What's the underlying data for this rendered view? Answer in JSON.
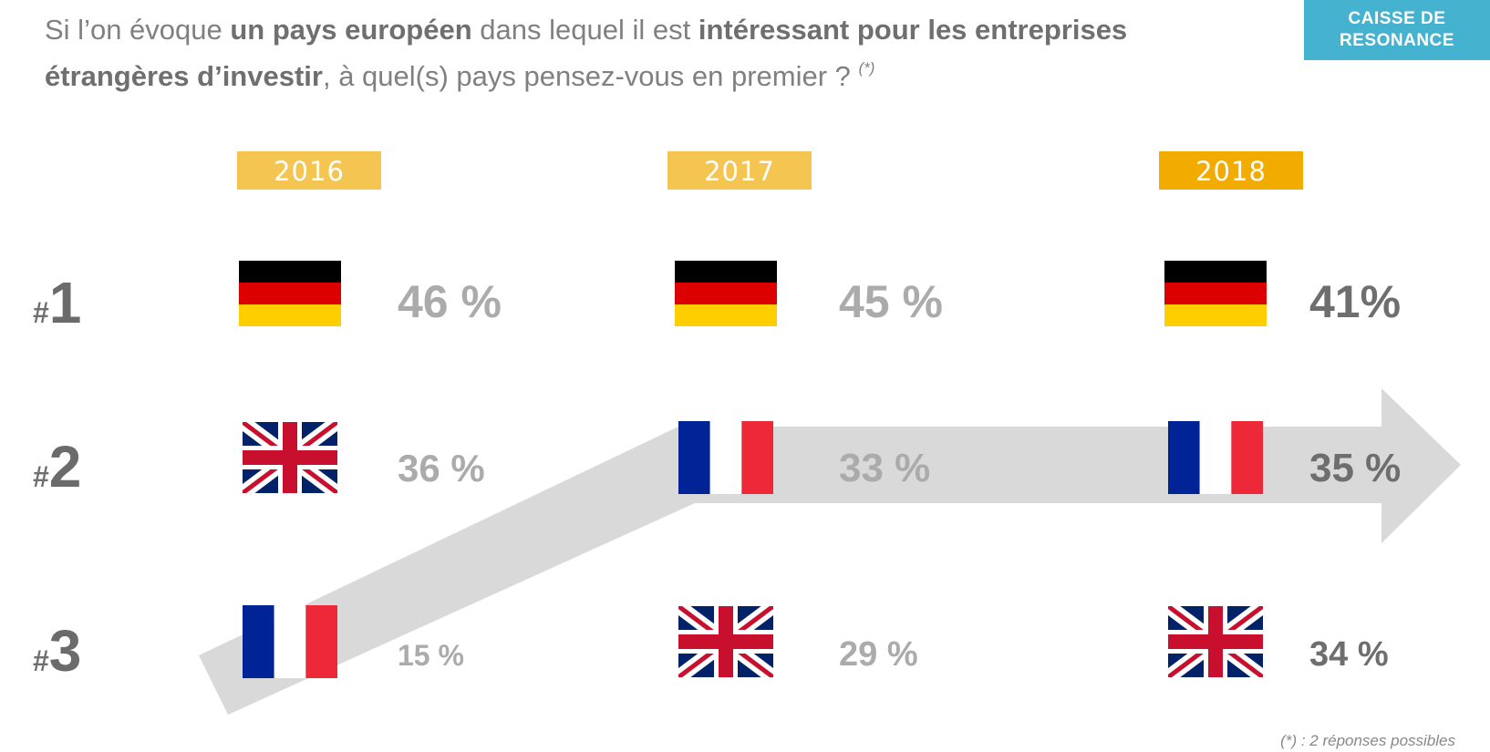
{
  "header": {
    "question_parts": [
      {
        "text": "Si l’on évoque ",
        "bold": false
      },
      {
        "text": "un pays européen",
        "bold": true
      },
      {
        "text": " dans lequel il est ",
        "bold": false
      },
      {
        "text": "intéressant pour les entreprises étrangères d’investir",
        "bold": true
      },
      {
        "text": ", à quel(s) pays pensez-vous en premier ? ",
        "bold": false
      }
    ],
    "question_note": "(*)",
    "brand_line1": "CAISSE DE",
    "brand_line2": "RESONANCE"
  },
  "footnote": "(*) : 2 réponses possibles",
  "colors": {
    "brand": "#45b3cf",
    "year_2016": "#f5c552",
    "year_2017": "#f5c552",
    "year_2018": "#f2ab00",
    "arrow": "#d9d9d9",
    "value_light": "#ababab",
    "value_dark": "#6e6e6e"
  },
  "chart_data": {
    "type": "table",
    "title": "Pays européen intéressant pour les entreprises étrangères d'investir",
    "years": [
      "2016",
      "2017",
      "2018"
    ],
    "ranks": [
      "1",
      "2",
      "3"
    ],
    "rank_prefix": "#",
    "cells": [
      [
        {
          "rank": 1,
          "country": "Allemagne",
          "flag": "germany-flag-icon",
          "value": 46,
          "label": "46 %"
        },
        {
          "rank": 2,
          "country": "Royaume-Uni",
          "flag": "uk-flag-icon",
          "value": 36,
          "label": "36 %"
        },
        {
          "rank": 3,
          "country": "France",
          "flag": "france-flag-icon",
          "value": 15,
          "label": "15 %"
        }
      ],
      [
        {
          "rank": 1,
          "country": "Allemagne",
          "flag": "germany-flag-icon",
          "value": 45,
          "label": "45 %"
        },
        {
          "rank": 2,
          "country": "France",
          "flag": "france-flag-icon",
          "value": 33,
          "label": "33 %"
        },
        {
          "rank": 3,
          "country": "Royaume-Uni",
          "flag": "uk-flag-icon",
          "value": 29,
          "label": "29 %"
        }
      ],
      [
        {
          "rank": 1,
          "country": "Allemagne",
          "flag": "germany-flag-icon",
          "value": 41,
          "label": "41%"
        },
        {
          "rank": 2,
          "country": "France",
          "flag": "france-flag-icon",
          "value": 35,
          "label": "35 %"
        },
        {
          "rank": 3,
          "country": "Royaume-Uni",
          "flag": "uk-flag-icon",
          "value": 34,
          "label": "34 %"
        }
      ]
    ],
    "highlight": {
      "country": "France",
      "trend": "rank 3 (2016) → rank 2 (2017) → rank 2 (2018)"
    }
  }
}
